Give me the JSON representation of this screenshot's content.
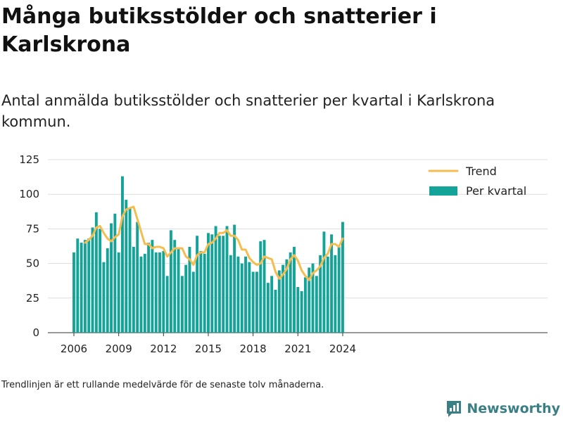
{
  "header": {
    "title": "Många butiksstölder och snatterier i Karlskrona",
    "subtitle": "Antal anmälda butiksstölder och snatterier per kvartal i Karlskrona kommun."
  },
  "footer": {
    "note": "Trendlinjen är ett rullande medelvärde för de senaste tolv månaderna.",
    "brand": "Newsworthy"
  },
  "colors": {
    "bar": "#13a398",
    "trend": "#f5bd4f",
    "brand": "#3a7f86"
  },
  "chart_data": {
    "type": "bar",
    "x_start": "2006 Q1",
    "x_ticks": [
      "2006",
      "2009",
      "2012",
      "2015",
      "2018",
      "2021",
      "2024"
    ],
    "y_ticks": [
      "0",
      "25",
      "50",
      "75",
      "100",
      "125"
    ],
    "ylim": [
      0,
      125
    ],
    "grid": true,
    "legend_position": "top-right",
    "series": [
      {
        "name": "Per kvartal",
        "type": "bar",
        "values": [
          58,
          68,
          65,
          67,
          68,
          76,
          87,
          75,
          51,
          61,
          79,
          86,
          58,
          113,
          96,
          90,
          62,
          80,
          55,
          57,
          65,
          67,
          58,
          58,
          59,
          41,
          74,
          67,
          61,
          41,
          49,
          62,
          44,
          70,
          59,
          57,
          72,
          71,
          77,
          70,
          70,
          77,
          56,
          78,
          55,
          50,
          55,
          51,
          44,
          44,
          66,
          67,
          36,
          41,
          31,
          45,
          49,
          53,
          58,
          62,
          33,
          30,
          40,
          47,
          50,
          41,
          56,
          73,
          55,
          71,
          56,
          62,
          80
        ]
      },
      {
        "name": "Trend",
        "type": "line",
        "values": [
          null,
          null,
          null,
          65,
          67,
          70,
          76,
          77,
          72,
          68,
          66,
          69,
          71,
          84,
          89,
          90,
          91,
          82,
          73,
          64,
          64,
          61,
          62,
          62,
          61,
          55,
          58,
          61,
          61,
          61,
          55,
          53,
          49,
          56,
          58,
          58,
          64,
          65,
          68,
          72,
          72,
          74,
          70,
          70,
          67,
          60,
          60,
          54,
          51,
          49,
          50,
          55,
          54,
          53,
          44,
          39,
          42,
          46,
          53,
          56,
          52,
          45,
          41,
          38,
          43,
          45,
          48,
          54,
          57,
          64,
          64,
          62,
          68
        ]
      }
    ]
  }
}
